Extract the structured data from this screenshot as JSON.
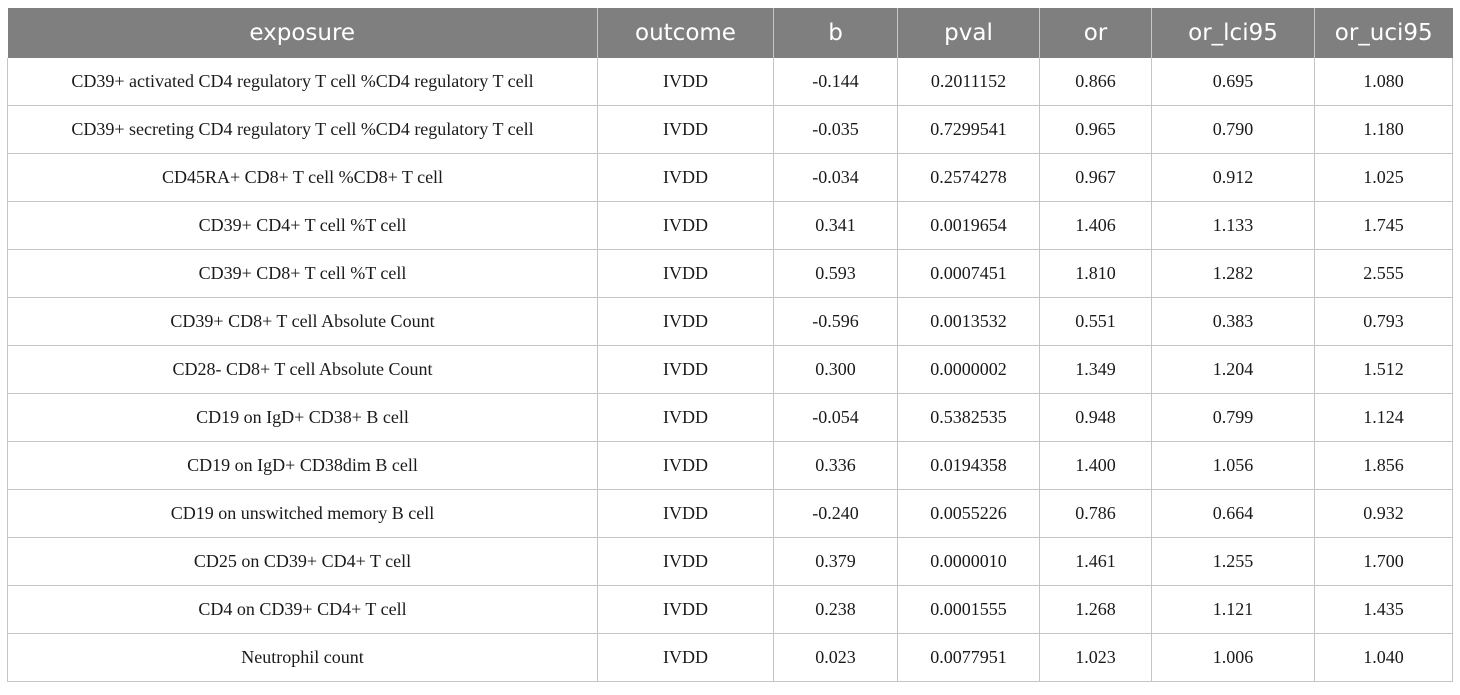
{
  "table": {
    "columns": [
      "exposure",
      "outcome",
      "b",
      "pval",
      "or",
      "or_lci95",
      "or_uci95"
    ],
    "rows": [
      [
        "CD39+ activated CD4 regulatory T cell %CD4 regulatory T cell",
        "IVDD",
        "-0.144",
        "0.2011152",
        "0.866",
        "0.695",
        "1.080"
      ],
      [
        "CD39+ secreting CD4 regulatory T cell %CD4 regulatory T cell",
        "IVDD",
        "-0.035",
        "0.7299541",
        "0.965",
        "0.790",
        "1.180"
      ],
      [
        "CD45RA+ CD8+ T cell %CD8+ T cell",
        "IVDD",
        "-0.034",
        "0.2574278",
        "0.967",
        "0.912",
        "1.025"
      ],
      [
        "CD39+ CD4+ T cell %T cell",
        "IVDD",
        "0.341",
        "0.0019654",
        "1.406",
        "1.133",
        "1.745"
      ],
      [
        "CD39+ CD8+ T cell %T cell",
        "IVDD",
        "0.593",
        "0.0007451",
        "1.810",
        "1.282",
        "2.555"
      ],
      [
        "CD39+ CD8+ T cell Absolute Count",
        "IVDD",
        "-0.596",
        "0.0013532",
        "0.551",
        "0.383",
        "0.793"
      ],
      [
        "CD28- CD8+ T cell Absolute Count",
        "IVDD",
        "0.300",
        "0.0000002",
        "1.349",
        "1.204",
        "1.512"
      ],
      [
        "CD19 on IgD+ CD38+ B cell",
        "IVDD",
        "-0.054",
        "0.5382535",
        "0.948",
        "0.799",
        "1.124"
      ],
      [
        "CD19 on IgD+ CD38dim B cell",
        "IVDD",
        "0.336",
        "0.0194358",
        "1.400",
        "1.056",
        "1.856"
      ],
      [
        "CD19 on unswitched memory B cell",
        "IVDD",
        "-0.240",
        "0.0055226",
        "0.786",
        "0.664",
        "0.932"
      ],
      [
        "CD25 on CD39+ CD4+ T cell",
        "IVDD",
        "0.379",
        "0.0000010",
        "1.461",
        "1.255",
        "1.700"
      ],
      [
        "CD4 on CD39+ CD4+ T cell",
        "IVDD",
        "0.238",
        "0.0001555",
        "1.268",
        "1.121",
        "1.435"
      ],
      [
        "Neutrophil count",
        "IVDD",
        "0.023",
        "0.0077951",
        "1.023",
        "1.006",
        "1.040"
      ]
    ]
  },
  "colors": {
    "header_bg": "#7f7f7f",
    "header_text": "#ffffff",
    "grid": "#c4c4c4",
    "cell_text": "#1a1a1a"
  }
}
